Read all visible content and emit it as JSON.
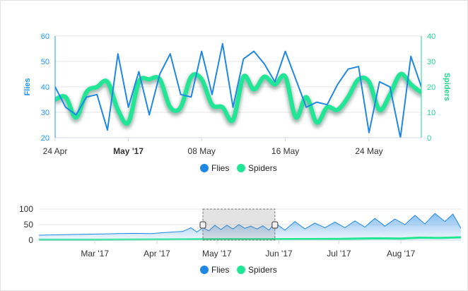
{
  "colors": {
    "flies": "#1f88e5",
    "spiders": "#20e696",
    "grid": "#e6e6e6"
  },
  "chart_data": [
    {
      "type": "line",
      "title": "",
      "x_axis": {
        "type": "date",
        "range": [
          "2017-04-24",
          "2017-05-29"
        ],
        "tick_labels": [
          "24 Apr",
          "May '17",
          "08 May",
          "16 May",
          "24 May"
        ],
        "bold_tick": "May '17"
      },
      "y_axes": [
        {
          "label": "Flies",
          "side": "left",
          "range": [
            20,
            60
          ],
          "ticks": [
            "20",
            "30",
            "40",
            "50",
            "60"
          ]
        },
        {
          "label": "Spiders",
          "side": "right",
          "range": [
            0,
            40
          ],
          "ticks": [
            "0",
            "10",
            "20",
            "30",
            "40"
          ]
        }
      ],
      "series": [
        {
          "name": "Flies",
          "axis": "left",
          "x": [
            "2017-04-24",
            "2017-04-25",
            "2017-04-26",
            "2017-04-27",
            "2017-04-28",
            "2017-04-29",
            "2017-04-30",
            "2017-05-01",
            "2017-05-02",
            "2017-05-03",
            "2017-05-04",
            "2017-05-05",
            "2017-05-06",
            "2017-05-07",
            "2017-05-08",
            "2017-05-09",
            "2017-05-10",
            "2017-05-11",
            "2017-05-12",
            "2017-05-13",
            "2017-05-14",
            "2017-05-15",
            "2017-05-16",
            "2017-05-17",
            "2017-05-18",
            "2017-05-19",
            "2017-05-20",
            "2017-05-21",
            "2017-05-22",
            "2017-05-23",
            "2017-05-24",
            "2017-05-25",
            "2017-05-26",
            "2017-05-27",
            "2017-05-28",
            "2017-05-29",
            "2017-05-30"
          ],
          "values": [
            40,
            32,
            29,
            36,
            37,
            23,
            53,
            32,
            46,
            29,
            45,
            53,
            37,
            36,
            54,
            37,
            57,
            32,
            51,
            54,
            49,
            42,
            54,
            43,
            32,
            34,
            33,
            41,
            47,
            48,
            22,
            42,
            40,
            20,
            52,
            40,
            40
          ]
        },
        {
          "name": "Spiders",
          "axis": "right",
          "x": [
            "2017-04-24",
            "2017-04-25",
            "2017-04-26",
            "2017-04-27",
            "2017-04-28",
            "2017-04-29",
            "2017-04-30",
            "2017-05-01",
            "2017-05-02",
            "2017-05-03",
            "2017-05-04",
            "2017-05-05",
            "2017-05-06",
            "2017-05-07",
            "2017-05-08",
            "2017-05-09",
            "2017-05-10",
            "2017-05-11",
            "2017-05-12",
            "2017-05-13",
            "2017-05-14",
            "2017-05-15",
            "2017-05-16",
            "2017-05-17",
            "2017-05-18",
            "2017-05-19",
            "2017-05-20",
            "2017-05-21",
            "2017-05-22",
            "2017-05-23",
            "2017-05-24",
            "2017-05-25",
            "2017-05-26",
            "2017-05-27",
            "2017-05-28",
            "2017-05-29",
            "2017-05-30"
          ],
          "values": [
            15,
            16,
            8,
            18,
            20,
            22,
            11,
            6,
            22,
            23,
            23,
            12,
            12,
            24,
            23,
            13,
            12,
            7,
            24,
            19,
            24,
            21,
            24,
            8,
            16,
            6,
            12,
            11,
            16,
            23,
            22,
            11,
            17,
            25,
            21,
            18,
            18
          ]
        }
      ],
      "legend": {
        "position": "bottom",
        "entries": [
          "Flies",
          "Spiders"
        ]
      }
    },
    {
      "type": "area",
      "title": "",
      "x_axis": {
        "type": "date",
        "range": [
          "2017-02-01",
          "2017-08-31"
        ],
        "tick_labels": [
          "Mar '17",
          "Apr '17",
          "May '17",
          "Jun '17",
          "Jul '17",
          "Aug '17"
        ]
      },
      "y_axis": {
        "range": [
          0,
          100
        ],
        "ticks": [
          "0",
          "50",
          "100"
        ]
      },
      "selection": {
        "start": "2017-04-24",
        "end": "2017-05-30"
      },
      "series": [
        {
          "name": "Flies",
          "x": [
            "2017-02-01",
            "2017-02-09",
            "2017-02-17",
            "2017-02-25",
            "2017-03-05",
            "2017-03-13",
            "2017-03-21",
            "2017-03-29",
            "2017-04-06",
            "2017-04-14",
            "2017-04-18",
            "2017-04-21",
            "2017-04-24",
            "2017-04-27",
            "2017-04-30",
            "2017-05-03",
            "2017-05-06",
            "2017-05-09",
            "2017-05-12",
            "2017-05-15",
            "2017-05-18",
            "2017-05-21",
            "2017-05-24",
            "2017-05-27",
            "2017-05-30",
            "2017-06-04",
            "2017-06-09",
            "2017-06-14",
            "2017-06-19",
            "2017-06-24",
            "2017-06-29",
            "2017-07-04",
            "2017-07-09",
            "2017-07-14",
            "2017-07-19",
            "2017-07-24",
            "2017-07-29",
            "2017-08-03",
            "2017-08-08",
            "2017-08-13",
            "2017-08-18",
            "2017-08-23",
            "2017-08-27",
            "2017-08-31"
          ],
          "values": [
            16,
            17,
            18,
            19,
            20,
            21,
            22,
            21,
            25,
            28,
            40,
            26,
            40,
            30,
            48,
            34,
            48,
            36,
            50,
            38,
            45,
            36,
            46,
            32,
            56,
            32,
            60,
            36,
            55,
            40,
            58,
            40,
            62,
            42,
            70,
            45,
            68,
            50,
            80,
            52,
            86,
            60,
            84,
            38
          ]
        },
        {
          "name": "Spiders",
          "x": [
            "2017-02-01",
            "2017-03-01",
            "2017-04-01",
            "2017-05-01",
            "2017-06-01",
            "2017-07-01",
            "2017-07-20",
            "2017-08-01",
            "2017-08-10",
            "2017-08-20",
            "2017-08-31"
          ],
          "values": [
            1,
            1,
            2,
            3,
            3,
            4,
            6,
            5,
            8,
            7,
            9
          ]
        }
      ],
      "legend": {
        "position": "bottom",
        "entries": [
          "Flies",
          "Spiders"
        ]
      }
    }
  ]
}
